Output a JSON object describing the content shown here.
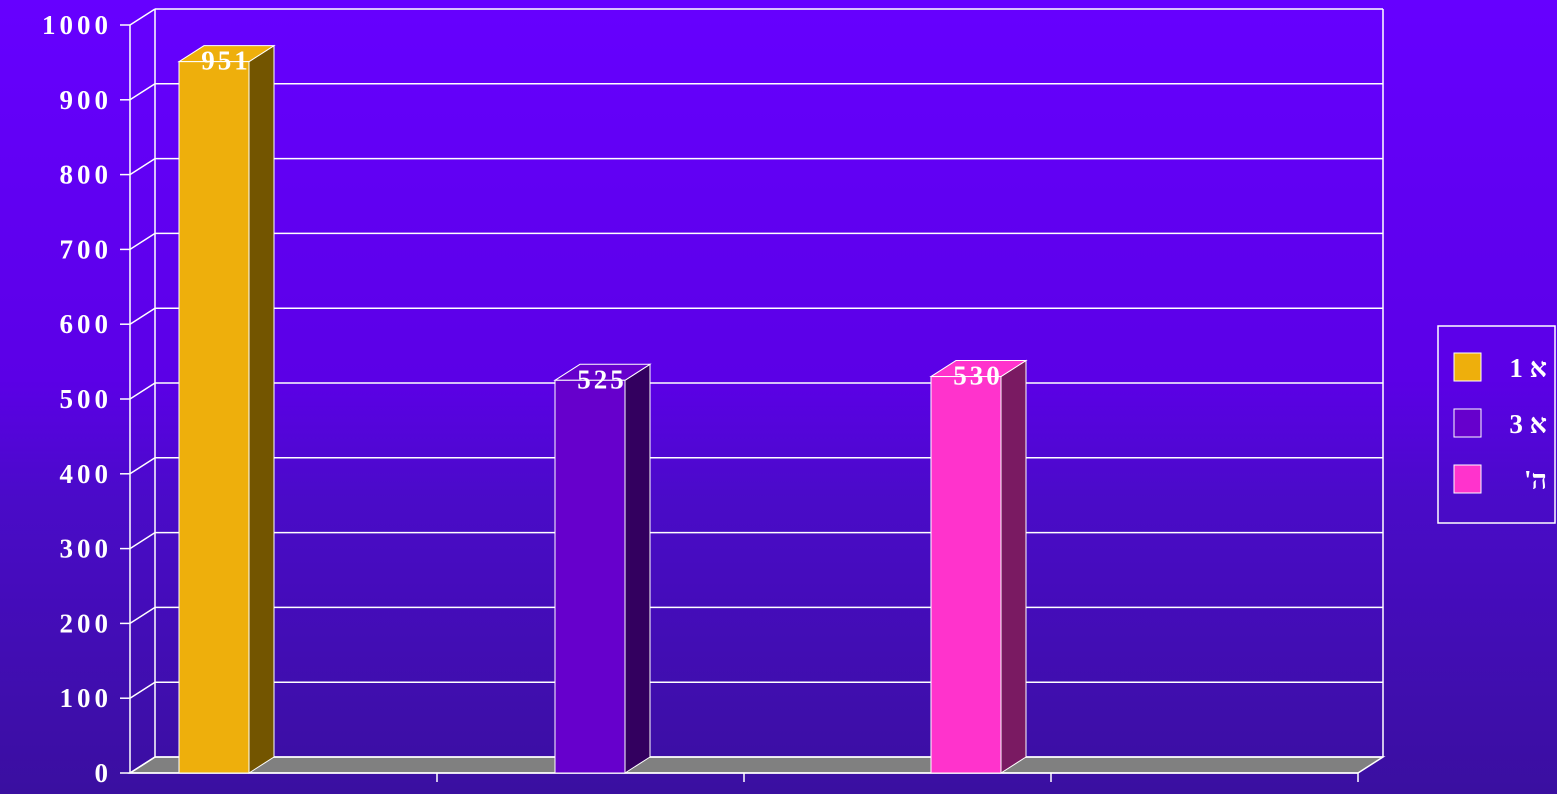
{
  "chart_data": {
    "type": "bar",
    "categories": [
      "",
      "",
      ""
    ],
    "series": [
      {
        "name": "א 1",
        "values": [
          951,
          null,
          null
        ]
      },
      {
        "name": "א 3",
        "values": [
          null,
          525,
          null
        ]
      },
      {
        "name": "ה'",
        "values": [
          null,
          null,
          530
        ]
      }
    ],
    "ylim": [
      0,
      1000
    ],
    "yticks": [
      "0",
      "100",
      "200",
      "300",
      "400",
      "500",
      "600",
      "700",
      "800",
      "900",
      "1000"
    ],
    "data_labels": [
      "951",
      "525",
      "530"
    ],
    "grid": true,
    "legend_position": "right",
    "title": "",
    "xlabel": "",
    "ylabel": ""
  },
  "colors": {
    "bar_front": [
      "#eeaf0c",
      "#6600cc",
      "#ff33cc"
    ],
    "bar_side": [
      "#735500",
      "#33005f",
      "#7a1a62"
    ],
    "floor": "#808080",
    "grid": "#ffffff"
  }
}
